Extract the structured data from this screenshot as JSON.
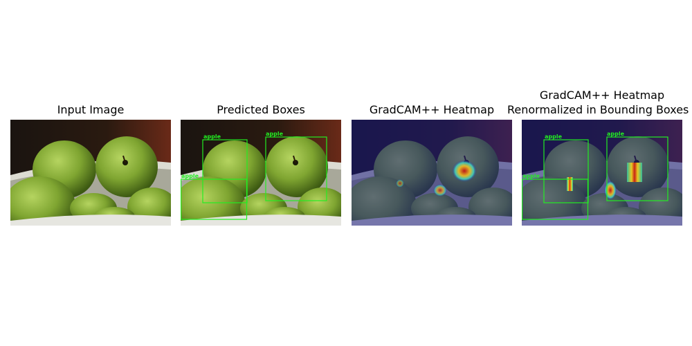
{
  "panels": [
    {
      "title": "Input Image"
    },
    {
      "title": "Predicted Boxes"
    },
    {
      "title": "GradCAM++ Heatmap"
    },
    {
      "title_line1": "GradCAM++ Heatmap",
      "title_line2": "Renormalized in Bounding Boxes"
    }
  ],
  "detections": [
    {
      "label": "apple"
    },
    {
      "label": "apple"
    },
    {
      "label": "apple"
    }
  ],
  "colors": {
    "box": "#22ee22",
    "overlay": "#1a1a80",
    "apple": "#7fa531",
    "bowl": "#e6e6e0"
  }
}
